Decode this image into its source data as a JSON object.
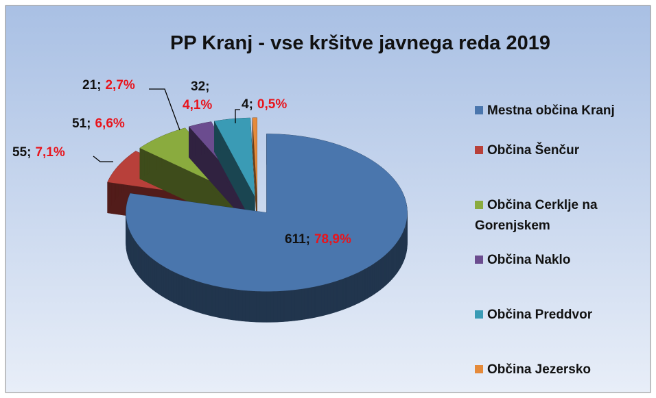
{
  "chart_data": {
    "type": "pie",
    "title": "PP Kranj - vse kršitve javnega reda 2019",
    "categories": [
      "Mestna občina Kranj",
      "Občina Šenčur",
      "Občina Cerklje na Gorenjskem",
      "Občina Naklo",
      "Občina Preddvor",
      "Občina Jezersko"
    ],
    "values": [
      611,
      55,
      51,
      21,
      32,
      4
    ],
    "percentages": [
      78.9,
      7.1,
      6.6,
      2.7,
      4.1,
      0.5
    ],
    "percentage_labels": [
      "78,9%",
      "7,1%",
      "6,6%",
      "2,7%",
      "4,1%",
      "0,5%"
    ],
    "label_separator": ";",
    "colors": [
      "#4a76ad",
      "#b8403a",
      "#8aab3e",
      "#6b4c8f",
      "#3a9bb5",
      "#e58a3a"
    ],
    "legend": "right"
  }
}
